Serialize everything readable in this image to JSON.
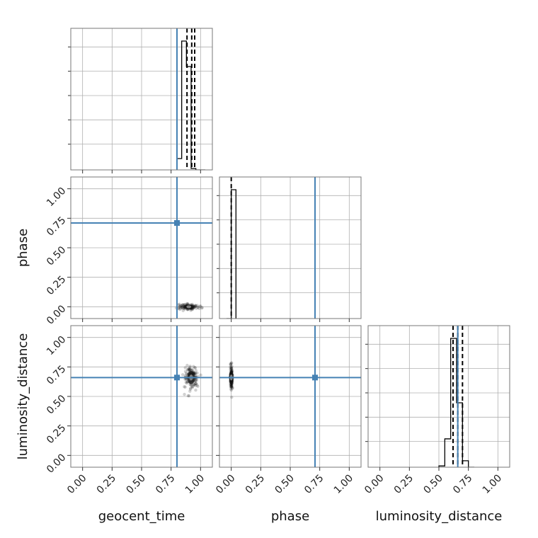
{
  "chart_data": {
    "type": "corner",
    "parameters": [
      "geocent_time",
      "phase",
      "luminosity_distance"
    ],
    "axis_range": [
      -0.1,
      1.1
    ],
    "tick_labels": [
      "0.00",
      "0.25",
      "0.50",
      "0.75",
      "1.00"
    ],
    "ticks": [
      0.0,
      0.25,
      0.5,
      0.75,
      1.0
    ],
    "truth_color": "#4682b4",
    "hist_color": "#000000",
    "truths": {
      "geocent_time": 0.8,
      "phase": 0.71,
      "luminosity_distance": 0.66
    },
    "grid": true,
    "histograms": [
      {
        "parameter": "geocent_time",
        "bin_edges": [
          0.8,
          0.84,
          0.88,
          0.92,
          0.96,
          1.0,
          1.04
        ],
        "counts": [
          0.08,
          0.91,
          0.73,
          0.01,
          0.0,
          0.0
        ],
        "quantiles": [
          0.885,
          0.925,
          0.95
        ]
      },
      {
        "parameter": "phase",
        "bin_edges": [
          -0.04,
          0.0,
          0.04
        ],
        "counts": [
          0.0,
          1.0
        ],
        "quantiles": [
          0.0
        ]
      },
      {
        "parameter": "luminosity_distance",
        "bin_edges": [
          0.5,
          0.55,
          0.6,
          0.65,
          0.7,
          0.75,
          0.8
        ],
        "counts": [
          0.01,
          0.22,
          1.0,
          0.5,
          0.05,
          0.0
        ],
        "quantiles": [
          0.62,
          0.66,
          0.7
        ]
      }
    ],
    "density_clusters": [
      {
        "x_param": "geocent_time",
        "y_param": "phase",
        "center": [
          0.9,
          0.0
        ],
        "spread": [
          0.04,
          0.012
        ]
      },
      {
        "x_param": "geocent_time",
        "y_param": "luminosity_distance",
        "center": [
          0.92,
          0.66
        ],
        "spread": [
          0.03,
          0.05
        ]
      },
      {
        "x_param": "phase",
        "y_param": "luminosity_distance",
        "center": [
          0.0,
          0.66
        ],
        "spread": [
          0.005,
          0.05
        ]
      }
    ]
  }
}
